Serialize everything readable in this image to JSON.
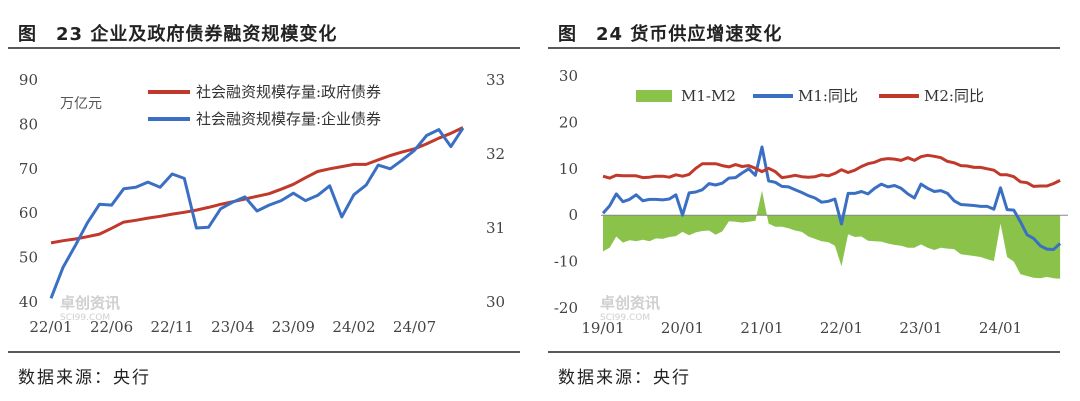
{
  "left": {
    "title": "图　23 企业及政府债券融资规模变化",
    "source": "数据来源：央行",
    "unit": "万亿元",
    "watermark": "卓创资讯",
    "watermark_sub": "SCI99.COM",
    "chart_data": {
      "type": "line",
      "categories": [
        "22/01",
        "22/02",
        "22/03",
        "22/04",
        "22/05",
        "22/06",
        "22/07",
        "22/08",
        "22/09",
        "22/10",
        "22/11",
        "22/12",
        "23/01",
        "23/02",
        "23/03",
        "23/04",
        "23/05",
        "23/06",
        "23/07",
        "23/08",
        "23/09",
        "23/10",
        "23/11",
        "23/12",
        "24/01",
        "24/02",
        "24/03",
        "24/04",
        "24/05",
        "24/06",
        "24/07",
        "24/08",
        "24/09",
        "24/10",
        "24/11"
      ],
      "xticks": [
        "22/01",
        "22/06",
        "22/11",
        "23/04",
        "23/09",
        "24/02",
        "24/07"
      ],
      "yticks_left": [
        40,
        50,
        60,
        70,
        80,
        90
      ],
      "yticks_right": [
        30,
        31,
        32,
        33
      ],
      "ylim_left": [
        40,
        90
      ],
      "ylim_right": [
        30,
        33
      ],
      "series": [
        {
          "name": "社会融资规模存量:政府债券",
          "axis": "left",
          "color": "#c0392b",
          "values": [
            53.3,
            53.8,
            54.2,
            54.7,
            55.3,
            56.6,
            58,
            58.4,
            58.9,
            59.3,
            59.8,
            60.2,
            60.7,
            61.3,
            62,
            62.6,
            63.2,
            63.8,
            64.4,
            65.4,
            66.5,
            68,
            69.4,
            70,
            70.5,
            71,
            71,
            72,
            73,
            73.8,
            74.5,
            75.6,
            76.9,
            78,
            79.3
          ]
        },
        {
          "name": "社会融资规模存量:企业债券",
          "axis": "right",
          "color": "#3a6fc4",
          "values": [
            30.05,
            30.47,
            30.76,
            31.07,
            31.32,
            31.31,
            31.53,
            31.55,
            31.62,
            31.55,
            31.73,
            31.67,
            31.0,
            31.01,
            31.26,
            31.35,
            31.42,
            31.23,
            31.31,
            31.37,
            31.47,
            31.37,
            31.44,
            31.57,
            31.15,
            31.45,
            31.58,
            31.85,
            31.8,
            31.92,
            32.05,
            32.25,
            32.33,
            32.1,
            32.35
          ]
        }
      ],
      "legend_position": "top-right"
    }
  },
  "right": {
    "title": "图　24 货币供应增速变化",
    "source": "数据来源：央行",
    "watermark": "卓创资讯",
    "watermark_sub": "SCI99.COM",
    "chart_data": {
      "type": "line",
      "xticks": [
        "19/01",
        "20/01",
        "21/01",
        "22/01",
        "23/01",
        "24/01"
      ],
      "yticks": [
        -20,
        -10,
        0,
        10,
        20,
        30
      ],
      "ylim": [
        -20,
        30
      ],
      "months_start": "19/01",
      "series": [
        {
          "name": "M1-M2",
          "type": "area",
          "color": "#8bc34a",
          "values": [
            -7.8,
            -7,
            -4.6,
            -5.9,
            -5.4,
            -5.6,
            -5.3,
            -5.6,
            -5.0,
            -5.1,
            -4.7,
            -4.5,
            -3.6,
            -4.3,
            -3.7,
            -3.4,
            -3.3,
            -4.2,
            -3.5,
            -1.3,
            -1.4,
            -1.6,
            -1.4,
            -1.2,
            5.3,
            -1.8,
            -2.5,
            -2.5,
            -2.8,
            -3.3,
            -3.6,
            -4.6,
            -5.1,
            -5.6,
            -5.8,
            -6.6,
            -11.0,
            -4.1,
            -4.7,
            -4.6,
            -5.5,
            -5.6,
            -5.7,
            -6.1,
            -6.4,
            -6.6,
            -7.0,
            -7.0,
            -6.3,
            -7.0,
            -7.5,
            -7.0,
            -7.2,
            -7.3,
            -8.4,
            -8.6,
            -8.8,
            -9.0,
            -9.5,
            -9.9,
            -1.8,
            -9.0,
            -10.0,
            -12.7,
            -13.1,
            -13.5,
            -13.6,
            -13.3,
            -13.6,
            -13.7
          ]
        },
        {
          "name": "M1:同比",
          "type": "line",
          "color": "#3a6fc4",
          "values": [
            0.4,
            2.0,
            4.6,
            2.9,
            3.4,
            4.4,
            3.1,
            3.4,
            3.4,
            3.3,
            3.5,
            4.4,
            0.0,
            4.8,
            5.0,
            5.5,
            6.8,
            6.5,
            6.9,
            8.0,
            8.1,
            9.1,
            10.0,
            8.6,
            14.7,
            7.4,
            7.1,
            6.2,
            6.1,
            5.5,
            4.9,
            4.2,
            3.7,
            2.8,
            3.0,
            3.5,
            -1.9,
            4.7,
            4.7,
            5.1,
            4.6,
            5.8,
            6.7,
            6.1,
            6.4,
            5.8,
            4.6,
            3.7,
            6.7,
            5.8,
            5.1,
            5.3,
            4.7,
            3.1,
            2.3,
            2.2,
            2.1,
            1.9,
            1.9,
            1.3,
            5.9,
            1.2,
            1.1,
            -1.4,
            -4.2,
            -5.0,
            -6.6,
            -7.3,
            -7.4,
            -6.1
          ]
        },
        {
          "name": "M2:同比",
          "type": "line",
          "color": "#c0392b",
          "values": [
            8.4,
            8.0,
            8.6,
            8.5,
            8.5,
            8.5,
            8.1,
            8.2,
            8.4,
            8.4,
            8.2,
            8.7,
            8.4,
            8.8,
            10.1,
            11.1,
            11.1,
            11.1,
            10.7,
            10.4,
            10.9,
            10.5,
            10.7,
            10.1,
            9.4,
            10.1,
            9.4,
            8.1,
            8.3,
            8.6,
            8.3,
            8.2,
            8.3,
            8.7,
            8.5,
            9.0,
            9.8,
            9.2,
            9.7,
            10.5,
            11.1,
            11.4,
            12.0,
            12.2,
            12.1,
            11.8,
            12.4,
            11.8,
            12.6,
            12.9,
            12.7,
            12.4,
            11.6,
            11.3,
            10.7,
            10.6,
            10.3,
            10.3,
            10.0,
            9.7,
            8.7,
            8.7,
            8.3,
            7.2,
            7.0,
            6.2,
            6.3,
            6.3,
            6.8,
            7.5
          ]
        }
      ],
      "legend_position": "top"
    }
  }
}
